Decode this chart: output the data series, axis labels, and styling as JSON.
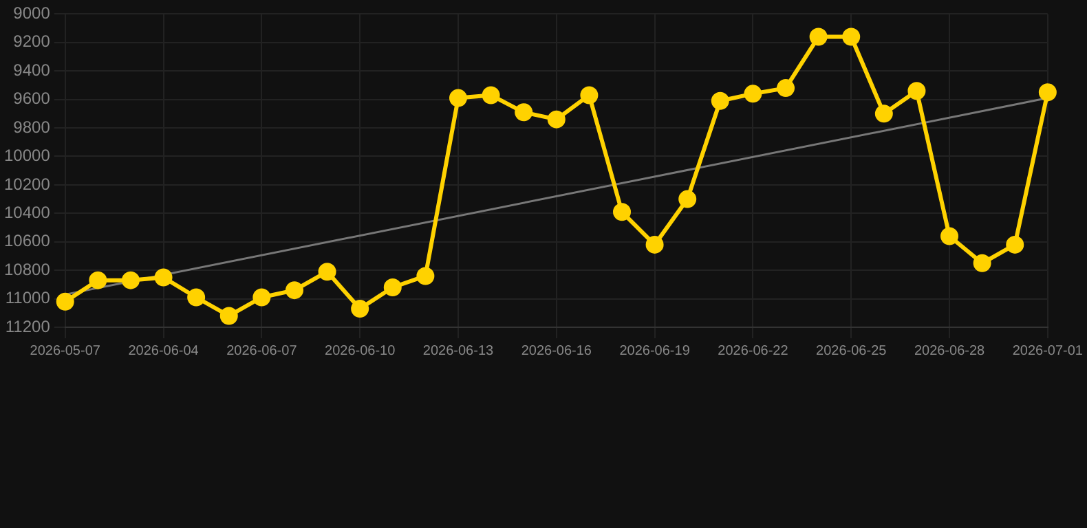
{
  "chart_data": {
    "type": "line",
    "categories": [
      "2026-05-07",
      null,
      null,
      "2026-06-04",
      null,
      null,
      "2026-06-07",
      null,
      null,
      "2026-06-10",
      null,
      null,
      "2026-06-13",
      null,
      null,
      "2026-06-16",
      null,
      null,
      "2026-06-19",
      null,
      null,
      "2026-06-22",
      null,
      null,
      "2026-06-25",
      null,
      null,
      "2026-06-28",
      null,
      null,
      "2026-07-01"
    ],
    "series": [
      {
        "color": "#ffd200",
        "marker": "circle",
        "values": [
          11020,
          10870,
          10870,
          10850,
          10990,
          11120,
          10990,
          10940,
          10810,
          11070,
          10920,
          10840,
          9590,
          9570,
          9690,
          9740,
          9570,
          10390,
          10620,
          10300,
          9610,
          9560,
          9520,
          9160,
          9160,
          9700,
          9540,
          10560,
          10750,
          10620,
          9550
        ]
      },
      {
        "color": "#777777",
        "marker": "none",
        "values": [
          10970,
          null,
          null,
          null,
          null,
          null,
          null,
          null,
          null,
          null,
          null,
          null,
          null,
          null,
          null,
          null,
          null,
          null,
          null,
          null,
          null,
          null,
          null,
          null,
          null,
          null,
          null,
          null,
          null,
          null,
          9590
        ]
      }
    ],
    "ylim": [
      11200,
      9000
    ],
    "yticks": [
      9000,
      9200,
      9400,
      9600,
      9800,
      10000,
      10200,
      10400,
      10600,
      10800,
      11000,
      11200
    ],
    "grid": true,
    "legend": false
  }
}
